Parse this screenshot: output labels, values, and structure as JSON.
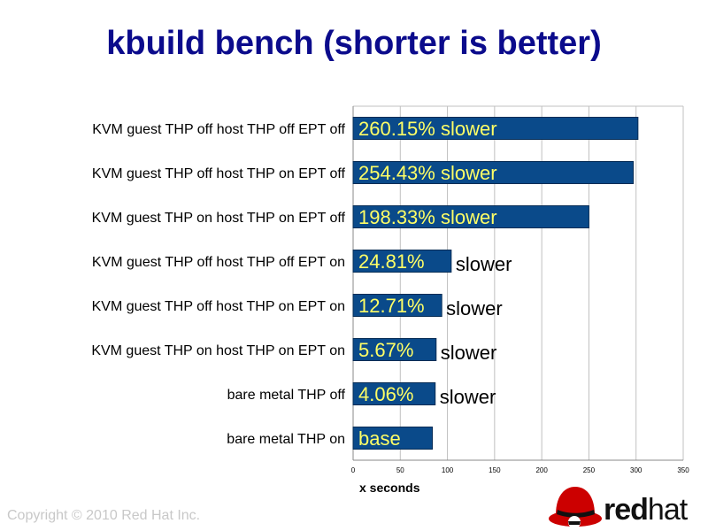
{
  "slide": {
    "title": "kbuild bench (shorter is better)",
    "copyright": "Copyright © 2010 Red Hat Inc."
  },
  "logo": {
    "wordmark_bold": "red",
    "wordmark_light": "hat",
    "icon": "shadowman-hat-icon"
  },
  "colors": {
    "bar": "#0a4a8a",
    "bar_label": "#ffff66",
    "text": "#000000",
    "title": "#0b0b8c",
    "grid": "#c0c0c0"
  },
  "chart_data": {
    "type": "bar",
    "orientation": "horizontal",
    "categories": [
      "KVM guest THP off host THP off EPT off",
      "KVM guest THP off host THP on EPT off",
      "KVM guest THP on host THP on EPT off",
      "KVM guest THP off host THP off EPT on",
      "KVM guest THP off host THP on EPT on",
      "KVM guest THP on host THP on EPT on",
      "bare metal THP off",
      "bare metal THP on"
    ],
    "values": [
      302,
      297,
      250,
      104,
      94,
      88,
      87,
      84
    ],
    "bar_labels": [
      "260.15% slower",
      "254.43% slower",
      "198.33% slower",
      "24.81%",
      "12.71%",
      "5.67%",
      "4.06%",
      "base"
    ],
    "outside_labels": [
      "",
      "",
      "",
      "slower",
      "slower",
      "slower",
      "slower",
      ""
    ],
    "xlabel": "x seconds",
    "xlim": [
      0,
      350
    ],
    "xticks": [
      0,
      50,
      100,
      150,
      200,
      250,
      300,
      350
    ],
    "grid": "vertical"
  }
}
